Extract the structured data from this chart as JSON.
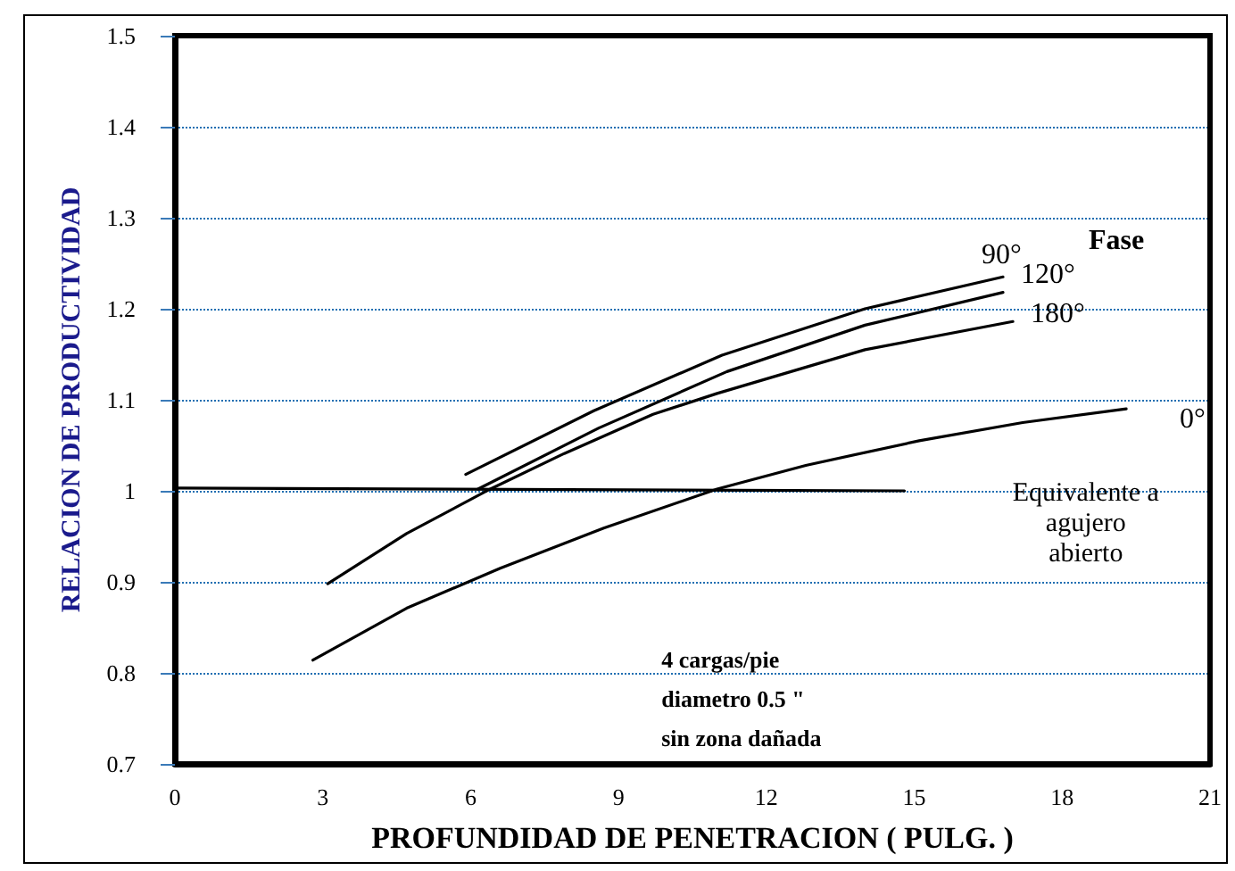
{
  "chart_data": {
    "type": "line",
    "xlabel": "PROFUNDIDAD DE PENETRACION ( PULG. )",
    "ylabel": "RELACION DE PRODUCTIVIDAD",
    "legend_title": "Fase",
    "xlim": [
      0,
      21
    ],
    "xticks": [
      0,
      3,
      6,
      9,
      12,
      15,
      18,
      21
    ],
    "ylim": [
      0.7,
      1.5
    ],
    "yticks": [
      0.7,
      0.8,
      0.9,
      1,
      1.1,
      1.2,
      1.3,
      1.4,
      1.5
    ],
    "grid": "y",
    "legend": false,
    "marker": "none",
    "line_style": "solid",
    "series": [
      {
        "name": "90°",
        "color": "#000000",
        "x": [
          5.9,
          8.5,
          11.1,
          14.0,
          16.8
        ],
        "values": [
          1.018,
          1.088,
          1.149,
          1.2,
          1.235
        ]
      },
      {
        "name": "120°",
        "color": "#000000",
        "x": [
          6.15,
          8.6,
          11.2,
          14.0,
          16.8
        ],
        "values": [
          1.002,
          1.069,
          1.131,
          1.182,
          1.218
        ]
      },
      {
        "name": "180°",
        "color": "#000000",
        "x": [
          3.1,
          4.7,
          6.4,
          7.9,
          9.7,
          11.0,
          14.0,
          17.0
        ],
        "values": [
          0.898,
          0.953,
          1.002,
          1.041,
          1.084,
          1.107,
          1.155,
          1.186
        ]
      },
      {
        "name": "0°",
        "color": "#000000",
        "x": [
          2.8,
          4.7,
          6.6,
          8.7,
          11.0,
          12.8,
          15.1,
          17.2,
          19.3
        ],
        "values": [
          0.814,
          0.871,
          0.915,
          0.959,
          1.002,
          1.028,
          1.055,
          1.075,
          1.09
        ]
      },
      {
        "color": "#000000",
        "x": [
          0,
          14.8
        ],
        "values": [
          1.003,
          1.0
        ]
      }
    ],
    "annotations": [
      "Equivalente a\nagujero\nabierto",
      "4 cargas/pie\ndiametro 0.5 \"\nsin zona dañada"
    ]
  }
}
